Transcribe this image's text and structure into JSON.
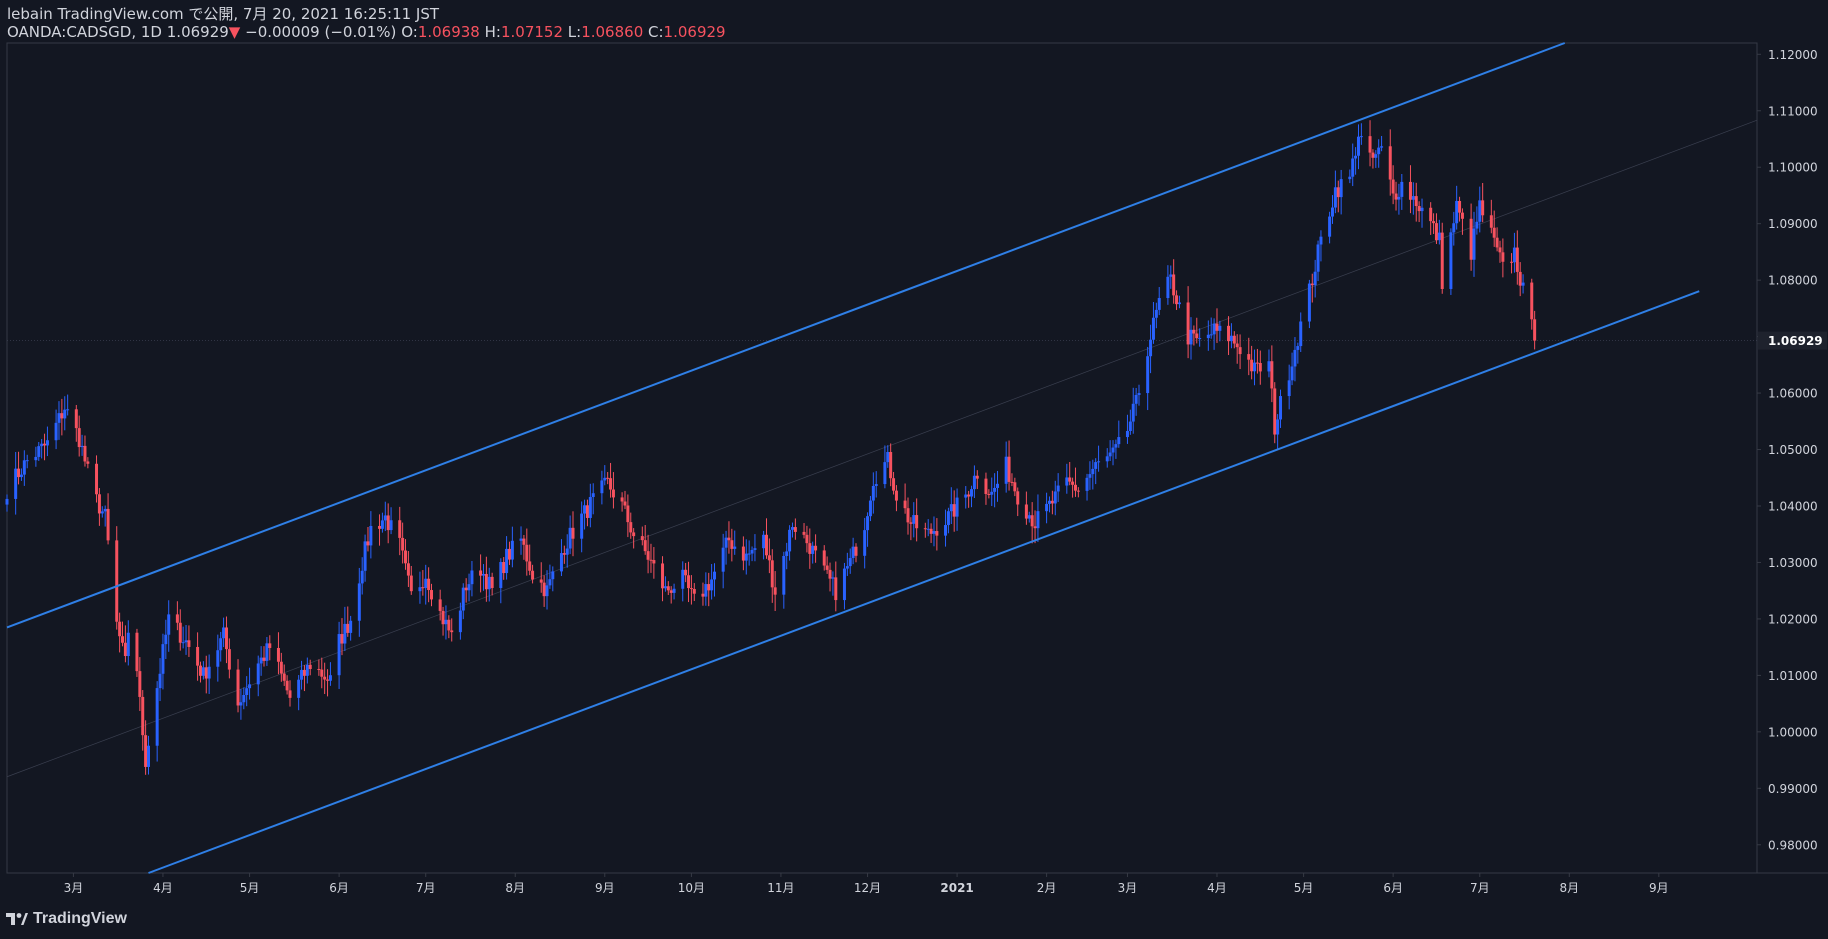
{
  "header": {
    "published": "lebain TradingView.com で公開, 7月 20, 2021 16:25:11 JST",
    "symbol": "OANDA:CADSGD, 1D",
    "last": "1.06929",
    "change_arrow": "▼",
    "change": "−0.00009 (−0.01%)",
    "o_label": "O:",
    "o_value": "1.06938",
    "h_label": "H:",
    "h_value": "1.07152",
    "l_label": "L:",
    "l_value": "1.06860",
    "c_label": "C:",
    "c_value": "1.06929"
  },
  "footer": {
    "brand": "TradingView"
  },
  "colors": {
    "background": "#131722",
    "up": "#2962ff",
    "down": "#f7525f",
    "channel": "#2f7fe6",
    "axis_text": "#d1d4dc",
    "grid": "#2a2e39"
  },
  "chart_data": {
    "type": "candlestick",
    "symbol": "OANDA:CADSGD",
    "timeframe": "1D",
    "last_price_label": "1.06929",
    "y_ticks": [
      "1.12000",
      "1.11000",
      "1.10000",
      "1.09000",
      "1.08000",
      "1.07000",
      "1.06000",
      "1.05000",
      "1.04000",
      "1.03000",
      "1.02000",
      "1.01000",
      "1.00000",
      "0.99000",
      "0.98000"
    ],
    "ylim": [
      0.975,
      1.122
    ],
    "x_labels": [
      "3月",
      "4月",
      "5月",
      "6月",
      "7月",
      "8月",
      "9月",
      "10月",
      "11月",
      "12月",
      "2021",
      "2月",
      "3月",
      "4月",
      "5月",
      "6月",
      "7月",
      "8月",
      "9月"
    ],
    "x_label_dates": [
      "2020-03-01",
      "2020-04-01",
      "2020-05-01",
      "2020-06-01",
      "2020-07-01",
      "2020-08-01",
      "2020-09-01",
      "2020-10-01",
      "2020-11-01",
      "2020-12-01",
      "2021-01-01",
      "2021-02-01",
      "2021-03-01",
      "2021-04-01",
      "2021-05-01",
      "2021-06-01",
      "2021-07-01",
      "2021-08-01",
      "2021-09-01"
    ],
    "xlim": [
      "2020-02-07",
      "2021-10-05"
    ],
    "price_anchors": [
      [
        "2020-02-07",
        1.043
      ],
      [
        "2020-02-14",
        1.048
      ],
      [
        "2020-02-21",
        1.051
      ],
      [
        "2020-02-27",
        1.0575
      ],
      [
        "2020-03-03",
        1.052
      ],
      [
        "2020-03-08",
        1.042
      ],
      [
        "2020-03-12",
        1.038
      ],
      [
        "2020-03-16",
        1.019
      ],
      [
        "2020-03-19",
        1.012
      ],
      [
        "2020-03-21",
        1.024
      ],
      [
        "2020-03-24",
        1.005
      ],
      [
        "2020-03-26",
        0.995
      ],
      [
        "2020-03-30",
        1.008
      ],
      [
        "2020-04-03",
        1.02
      ],
      [
        "2020-04-09",
        1.016
      ],
      [
        "2020-04-15",
        1.01
      ],
      [
        "2020-04-22",
        1.017
      ],
      [
        "2020-04-27",
        1.005
      ],
      [
        "2020-05-04",
        1.012
      ],
      [
        "2020-05-08",
        1.015
      ],
      [
        "2020-05-15",
        1.006
      ],
      [
        "2020-05-22",
        1.012
      ],
      [
        "2020-05-29",
        1.009
      ],
      [
        "2020-06-01",
        1.016
      ],
      [
        "2020-06-05",
        1.02
      ],
      [
        "2020-06-09",
        1.03
      ],
      [
        "2020-06-12",
        1.036
      ],
      [
        "2020-06-17",
        1.038
      ],
      [
        "2020-06-22",
        1.033
      ],
      [
        "2020-06-26",
        1.024
      ],
      [
        "2020-07-01",
        1.028
      ],
      [
        "2020-07-06",
        1.021
      ],
      [
        "2020-07-10",
        1.017
      ],
      [
        "2020-07-15",
        1.026
      ],
      [
        "2020-07-20",
        1.029
      ],
      [
        "2020-07-24",
        1.025
      ],
      [
        "2020-07-29",
        1.031
      ],
      [
        "2020-08-03",
        1.034
      ],
      [
        "2020-08-07",
        1.028
      ],
      [
        "2020-08-12",
        1.025
      ],
      [
        "2020-08-18",
        1.033
      ],
      [
        "2020-08-24",
        1.038
      ],
      [
        "2020-08-28",
        1.041
      ],
      [
        "2020-09-02",
        1.044
      ],
      [
        "2020-09-07",
        1.04
      ],
      [
        "2020-09-11",
        1.035
      ],
      [
        "2020-09-16",
        1.031
      ],
      [
        "2020-09-22",
        1.025
      ],
      [
        "2020-09-28",
        1.027
      ],
      [
        "2020-10-02",
        1.023
      ],
      [
        "2020-10-08",
        1.027
      ],
      [
        "2020-10-14",
        1.034
      ],
      [
        "2020-10-20",
        1.031
      ],
      [
        "2020-10-26",
        1.034
      ],
      [
        "2020-10-30",
        1.025
      ],
      [
        "2020-11-05",
        1.037
      ],
      [
        "2020-11-11",
        1.033
      ],
      [
        "2020-11-16",
        1.028
      ],
      [
        "2020-11-20",
        1.025
      ],
      [
        "2020-11-25",
        1.03
      ],
      [
        "2020-11-30",
        1.037
      ],
      [
        "2020-12-03",
        1.045
      ],
      [
        "2020-12-08",
        1.048
      ],
      [
        "2020-12-11",
        1.042
      ],
      [
        "2020-12-16",
        1.037
      ],
      [
        "2020-12-22",
        1.035
      ],
      [
        "2020-12-29",
        1.038
      ],
      [
        "2021-01-04",
        1.042
      ],
      [
        "2021-01-08",
        1.046
      ],
      [
        "2021-01-13",
        1.042
      ],
      [
        "2021-01-18",
        1.047
      ],
      [
        "2021-01-22",
        1.042
      ],
      [
        "2021-01-28",
        1.037
      ],
      [
        "2021-02-02",
        1.04
      ],
      [
        "2021-02-08",
        1.044
      ],
      [
        "2021-02-12",
        1.043
      ],
      [
        "2021-02-18",
        1.047
      ],
      [
        "2021-02-24",
        1.049
      ],
      [
        "2021-02-28",
        1.052
      ],
      [
        "2021-03-04",
        1.058
      ],
      [
        "2021-03-08",
        1.068
      ],
      [
        "2021-03-12",
        1.076
      ],
      [
        "2021-03-16",
        1.08
      ],
      [
        "2021-03-19",
        1.075
      ],
      [
        "2021-03-22",
        1.07
      ],
      [
        "2021-03-26",
        1.069
      ],
      [
        "2021-03-31",
        1.071
      ],
      [
        "2021-04-05",
        1.07
      ],
      [
        "2021-04-09",
        1.068
      ],
      [
        "2021-04-14",
        1.064
      ],
      [
        "2021-04-19",
        1.065
      ],
      [
        "2021-04-21",
        1.054
      ],
      [
        "2021-04-25",
        1.062
      ],
      [
        "2021-04-29",
        1.07
      ],
      [
        "2021-05-03",
        1.078
      ],
      [
        "2021-05-07",
        1.087
      ],
      [
        "2021-05-12",
        1.096
      ],
      [
        "2021-05-17",
        1.098
      ],
      [
        "2021-05-20",
        1.106
      ],
      [
        "2021-05-24",
        1.101
      ],
      [
        "2021-05-28",
        1.103
      ],
      [
        "2021-06-01",
        1.095
      ],
      [
        "2021-06-04",
        1.097
      ],
      [
        "2021-06-09",
        1.094
      ],
      [
        "2021-06-14",
        1.09
      ],
      [
        "2021-06-17",
        1.087
      ],
      [
        "2021-06-18",
        1.08
      ],
      [
        "2021-06-23",
        1.093
      ],
      [
        "2021-06-28",
        1.085
      ],
      [
        "2021-07-01",
        1.093
      ],
      [
        "2021-07-05",
        1.088
      ],
      [
        "2021-07-09",
        1.082
      ],
      [
        "2021-07-13",
        1.085
      ],
      [
        "2021-07-16",
        1.078
      ],
      [
        "2021-07-20",
        1.0693
      ]
    ],
    "channel": {
      "upper": [
        [
          "2020-02-07",
          1.0185
        ],
        [
          "2021-07-20",
          1.12
        ]
      ],
      "lower": [
        [
          "2020-03-27",
          0.975
        ],
        [
          "2021-07-20",
          1.0685
        ]
      ],
      "extend_right_until": "2021-09-15"
    },
    "current_price": 1.06929,
    "grid": false,
    "legend": "none"
  }
}
